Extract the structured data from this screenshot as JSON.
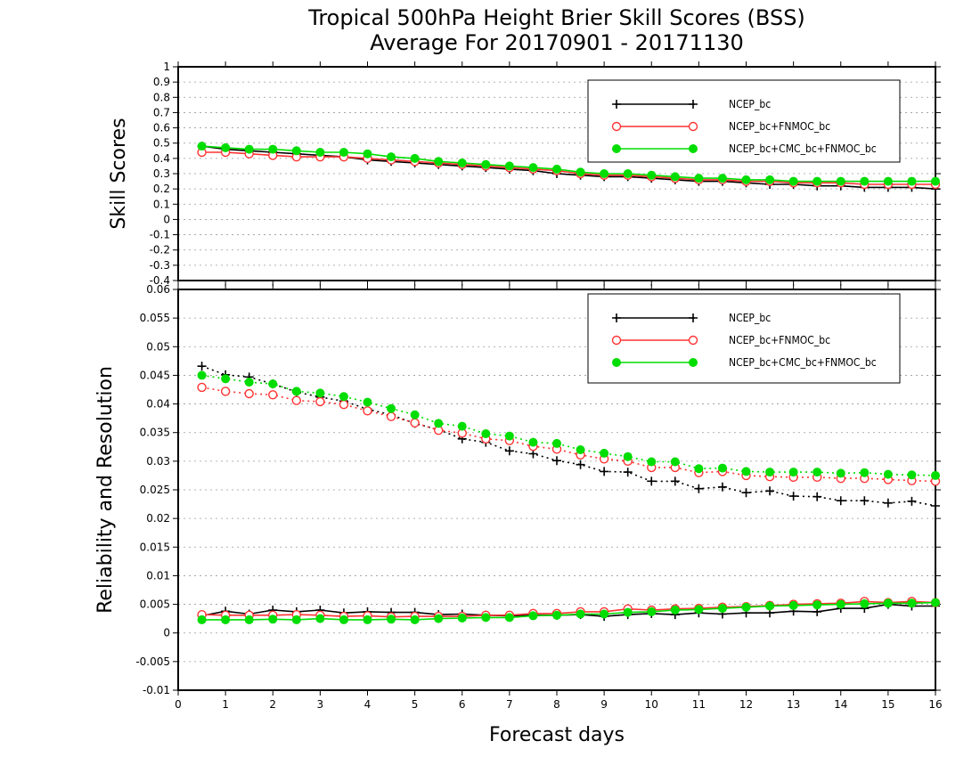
{
  "title_line1": "Tropical 500hPa Height Brier Skill Scores (BSS)",
  "title_line2": "Average For 20170901 - 20171130",
  "xlabel": "Forecast days",
  "colors": {
    "NCEP_bc": "#000000",
    "NCEP_bc+FNMOC_bc": "#ff3333",
    "NCEP_bc+CMC_bc+FNMOC_bc": "#00dd00"
  },
  "chart_data": [
    {
      "type": "line",
      "ylabel": "Skill Scores",
      "xlim": [
        0,
        16
      ],
      "ylim": [
        -0.4,
        1
      ],
      "xticks": [
        "0",
        "1",
        "2",
        "3",
        "4",
        "5",
        "6",
        "7",
        "8",
        "9",
        "10",
        "11",
        "12",
        "13",
        "14",
        "15",
        "16"
      ],
      "yticks": [
        "-0.4",
        "-0.3",
        "-0.2",
        "-0.1",
        "0",
        "0.1",
        "0.2",
        "0.3",
        "0.4",
        "0.5",
        "0.6",
        "0.7",
        "0.8",
        "0.9",
        "1"
      ],
      "grid": true,
      "legend": "top-right",
      "x": [
        0.5,
        1,
        1.5,
        2,
        2.5,
        3,
        3.5,
        4,
        4.5,
        5,
        5.5,
        6,
        6.5,
        7,
        7.5,
        8,
        8.5,
        9,
        9.5,
        10,
        10.5,
        11,
        11.5,
        12,
        12.5,
        13,
        13.5,
        14,
        14.5,
        15,
        15.5,
        16
      ],
      "series": [
        {
          "name": "NCEP_bc",
          "style": "solid",
          "marker": "plus",
          "values": [
            0.48,
            0.46,
            0.45,
            0.44,
            0.43,
            0.42,
            0.41,
            0.39,
            0.38,
            0.37,
            0.36,
            0.35,
            0.34,
            0.33,
            0.32,
            0.3,
            0.29,
            0.28,
            0.28,
            0.27,
            0.26,
            0.25,
            0.25,
            0.24,
            0.23,
            0.23,
            0.22,
            0.22,
            0.21,
            0.21,
            0.21,
            0.2
          ]
        },
        {
          "name": "NCEP_bc+FNMOC_bc",
          "style": "solid",
          "marker": "open-circle",
          "values": [
            0.44,
            0.44,
            0.43,
            0.42,
            0.41,
            0.41,
            0.41,
            0.4,
            0.39,
            0.38,
            0.37,
            0.36,
            0.35,
            0.34,
            0.33,
            0.32,
            0.3,
            0.29,
            0.29,
            0.28,
            0.27,
            0.26,
            0.26,
            0.25,
            0.25,
            0.24,
            0.24,
            0.24,
            0.23,
            0.23,
            0.23,
            0.23
          ]
        },
        {
          "name": "NCEP_bc+CMC_bc+FNMOC_bc",
          "style": "solid",
          "marker": "filled-circle",
          "values": [
            0.48,
            0.47,
            0.46,
            0.46,
            0.45,
            0.44,
            0.44,
            0.43,
            0.41,
            0.4,
            0.38,
            0.37,
            0.36,
            0.35,
            0.34,
            0.33,
            0.31,
            0.3,
            0.3,
            0.29,
            0.28,
            0.27,
            0.27,
            0.26,
            0.26,
            0.25,
            0.25,
            0.25,
            0.25,
            0.25,
            0.25,
            0.25
          ]
        }
      ]
    },
    {
      "type": "line",
      "ylabel": "Reliability and Resolution",
      "xlim": [
        0,
        16
      ],
      "ylim": [
        -0.01,
        0.06
      ],
      "xticks": [
        "0",
        "1",
        "2",
        "3",
        "4",
        "5",
        "6",
        "7",
        "8",
        "9",
        "10",
        "11",
        "12",
        "13",
        "14",
        "15",
        "16"
      ],
      "yticks": [
        "-0.01",
        "-0.005",
        "0",
        "0.005",
        "0.01",
        "0.015",
        "0.02",
        "0.025",
        "0.03",
        "0.035",
        "0.04",
        "0.045",
        "0.05",
        "0.055",
        "0.06"
      ],
      "grid": true,
      "legend": "top-right",
      "x": [
        0.5,
        1,
        1.5,
        2,
        2.5,
        3,
        3.5,
        4,
        4.5,
        5,
        5.5,
        6,
        6.5,
        7,
        7.5,
        8,
        8.5,
        9,
        9.5,
        10,
        10.5,
        11,
        11.5,
        12,
        12.5,
        13,
        13.5,
        14,
        14.5,
        15,
        15.5,
        16
      ],
      "series": [
        {
          "name": "NCEP_bc",
          "group": "resolution",
          "style": "dotted",
          "marker": "plus",
          "values": [
            0.0466,
            0.0451,
            0.0447,
            0.0435,
            0.0421,
            0.0412,
            0.0405,
            0.0391,
            0.0381,
            0.0366,
            0.0355,
            0.0339,
            0.0333,
            0.0318,
            0.0313,
            0.0301,
            0.0294,
            0.0282,
            0.0281,
            0.0265,
            0.0265,
            0.0252,
            0.0255,
            0.0245,
            0.0248,
            0.0239,
            0.0238,
            0.0231,
            0.0231,
            0.0227,
            0.023,
            0.0222
          ]
        },
        {
          "name": "NCEP_bc+FNMOC_bc",
          "group": "resolution",
          "style": "dotted",
          "marker": "open-circle",
          "values": [
            0.0429,
            0.0422,
            0.0418,
            0.0416,
            0.0406,
            0.0404,
            0.0399,
            0.0388,
            0.0378,
            0.0367,
            0.0354,
            0.0349,
            0.0339,
            0.0336,
            0.0326,
            0.0321,
            0.0311,
            0.0304,
            0.03,
            0.0289,
            0.0289,
            0.028,
            0.0282,
            0.0275,
            0.0273,
            0.0272,
            0.0272,
            0.027,
            0.027,
            0.0268,
            0.0266,
            0.0265
          ]
        },
        {
          "name": "NCEP_bc+CMC_bc+FNMOC_bc",
          "group": "resolution",
          "style": "dotted",
          "marker": "filled-circle",
          "values": [
            0.045,
            0.0444,
            0.0438,
            0.0435,
            0.0422,
            0.0419,
            0.0413,
            0.0403,
            0.0392,
            0.0381,
            0.0366,
            0.0361,
            0.0348,
            0.0344,
            0.0333,
            0.0331,
            0.032,
            0.0314,
            0.0308,
            0.0299,
            0.0299,
            0.0287,
            0.0288,
            0.0282,
            0.0281,
            0.0281,
            0.0281,
            0.0279,
            0.028,
            0.0277,
            0.0276,
            0.0275
          ]
        },
        {
          "name": "NCEP_bc",
          "group": "reliability",
          "style": "solid",
          "marker": "plus",
          "values": [
            0.003,
            0.0038,
            0.0033,
            0.004,
            0.0037,
            0.004,
            0.0035,
            0.0037,
            0.0036,
            0.0036,
            0.0032,
            0.0033,
            0.0031,
            0.003,
            0.0031,
            0.0031,
            0.0032,
            0.0029,
            0.0032,
            0.0034,
            0.0032,
            0.0035,
            0.0033,
            0.0035,
            0.0035,
            0.0038,
            0.0037,
            0.0043,
            0.0043,
            0.005,
            0.0047,
            0.0047
          ]
        },
        {
          "name": "NCEP_bc+FNMOC_bc",
          "group": "reliability",
          "style": "solid",
          "marker": "open-circle",
          "values": [
            0.0032,
            0.0031,
            0.0031,
            0.0031,
            0.0032,
            0.0031,
            0.0029,
            0.003,
            0.0028,
            0.0029,
            0.0029,
            0.0029,
            0.0031,
            0.0031,
            0.0034,
            0.0034,
            0.0037,
            0.0037,
            0.0042,
            0.004,
            0.0042,
            0.0043,
            0.0045,
            0.0046,
            0.0048,
            0.005,
            0.0051,
            0.0052,
            0.0055,
            0.0053,
            0.0055,
            0.0053
          ]
        },
        {
          "name": "NCEP_bc+CMC_bc+FNMOC_bc",
          "group": "reliability",
          "style": "solid",
          "marker": "filled-circle",
          "values": [
            0.0023,
            0.0023,
            0.0023,
            0.0024,
            0.0023,
            0.0025,
            0.0023,
            0.0023,
            0.0024,
            0.0023,
            0.0025,
            0.0026,
            0.0027,
            0.0027,
            0.003,
            0.0031,
            0.0033,
            0.0033,
            0.0036,
            0.0037,
            0.004,
            0.0041,
            0.0043,
            0.0045,
            0.0047,
            0.0048,
            0.0049,
            0.005,
            0.0051,
            0.0052,
            0.0052,
            0.0053
          ]
        }
      ]
    }
  ]
}
